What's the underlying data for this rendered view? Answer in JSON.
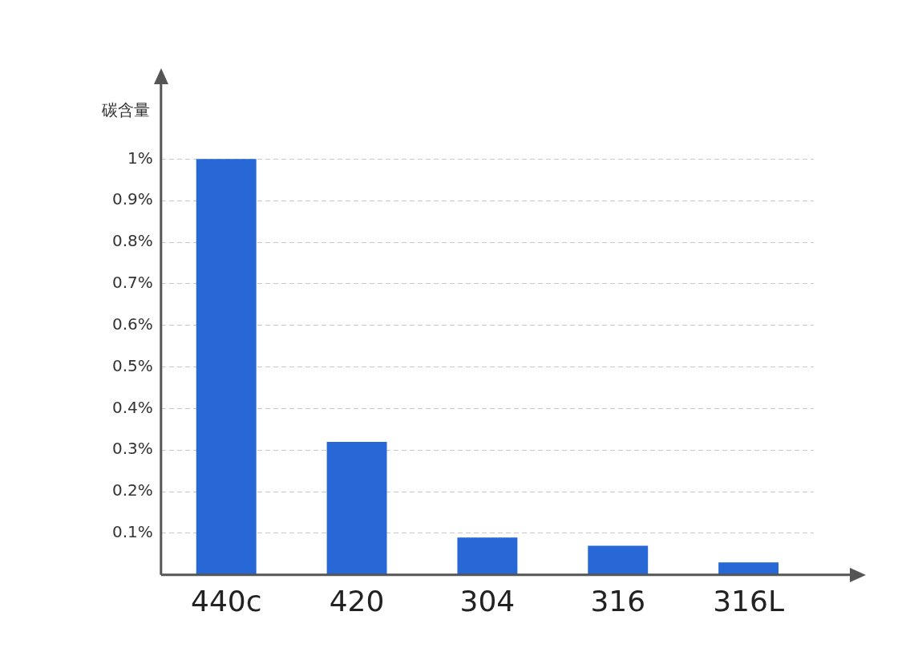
{
  "chart_data": {
    "type": "bar",
    "ylabel": "碳含量",
    "categories": [
      "440c",
      "420",
      "304",
      "316",
      "316L"
    ],
    "values": [
      1.0,
      0.32,
      0.09,
      0.07,
      0.03
    ],
    "color": "#2767d6",
    "ylim": [
      0,
      1.18
    ],
    "yticks": [
      {
        "value": 0.1,
        "label": "0.1%"
      },
      {
        "value": 0.2,
        "label": "0.2%"
      },
      {
        "value": 0.3,
        "label": "0.3%"
      },
      {
        "value": 0.4,
        "label": "0.4%"
      },
      {
        "value": 0.5,
        "label": "0.5%"
      },
      {
        "value": 0.6,
        "label": "0.6%"
      },
      {
        "value": 0.7,
        "label": "0.7%"
      },
      {
        "value": 0.8,
        "label": "0.8%"
      },
      {
        "value": 0.9,
        "label": "0.9%"
      },
      {
        "value": 1,
        "label": "1%"
      }
    ],
    "grid": "y",
    "legend": false,
    "line_style": "dashed"
  }
}
